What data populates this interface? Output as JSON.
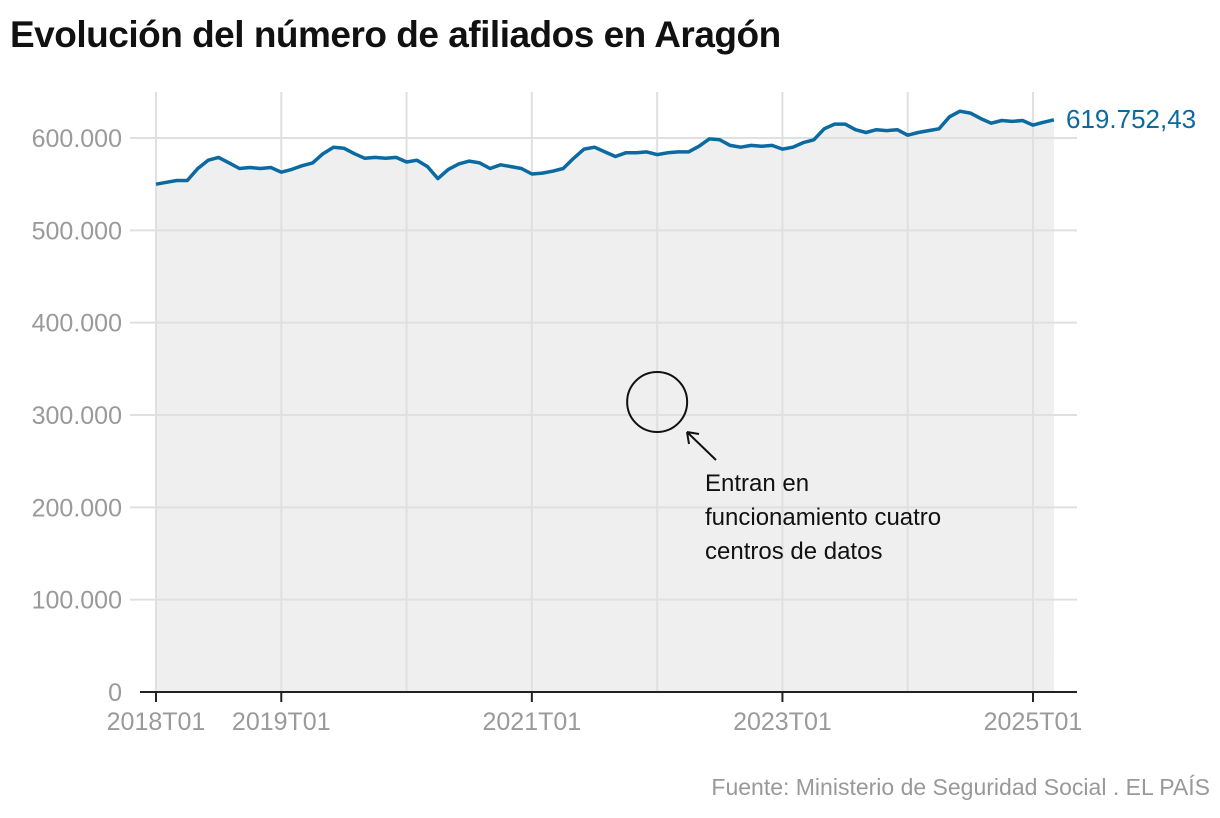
{
  "title": "Evolución del número de afiliados en Aragón",
  "source": "Fuente: Ministerio de Seguridad Social . EL PAÍS",
  "colors": {
    "line": "#0a6aa1",
    "fill": "#efefef",
    "grid": "#e0e0e0"
  },
  "chart_data": {
    "type": "area",
    "title": "Evolución del número de afiliados en Aragón",
    "xlabel": "",
    "ylabel": "",
    "ylim": [
      0,
      650000
    ],
    "yticks": [
      0,
      100000,
      200000,
      300000,
      400000,
      500000,
      600000
    ],
    "ytick_labels": [
      "0",
      "100.000",
      "200.000",
      "300.000",
      "400.000",
      "500.000",
      "600.000"
    ],
    "xtick_labels": [
      "2018T01",
      "2019T01",
      "2021T01",
      "2023T01",
      "2025T01"
    ],
    "xtick_years": [
      2018,
      2019,
      2021,
      2023,
      2025
    ],
    "grid_years": [
      2018,
      2019,
      2020,
      2021,
      2022,
      2023,
      2024,
      2025
    ],
    "start": "2018-01",
    "frequency": "monthly",
    "values": [
      550000,
      552000,
      554000,
      554000,
      567000,
      576000,
      579000,
      573000,
      567000,
      568000,
      567000,
      568000,
      563000,
      566000,
      570000,
      573000,
      583000,
      590000,
      589000,
      583000,
      578000,
      579000,
      578000,
      579000,
      574000,
      576000,
      569000,
      556000,
      566000,
      572000,
      575000,
      573000,
      567000,
      571000,
      569000,
      567000,
      561000,
      562000,
      564000,
      567000,
      578000,
      588000,
      590000,
      585000,
      580000,
      584000,
      584000,
      585000,
      582000,
      584000,
      585000,
      585000,
      591000,
      599000,
      598000,
      592000,
      590000,
      592000,
      591000,
      592000,
      588000,
      590000,
      595000,
      598000,
      610000,
      615000,
      615000,
      609000,
      606000,
      609000,
      608000,
      609000,
      603000,
      606000,
      608000,
      610000,
      623000,
      629000,
      627000,
      621000,
      616000,
      619000,
      618000,
      619000,
      614000,
      617000,
      619752.43
    ],
    "last_value_label": "619.752,43",
    "annotation": {
      "text_lines": [
        "Entran en",
        "funcionamiento cuatro",
        "centros de datos"
      ],
      "date": "2022-01",
      "marker": "circle"
    }
  }
}
